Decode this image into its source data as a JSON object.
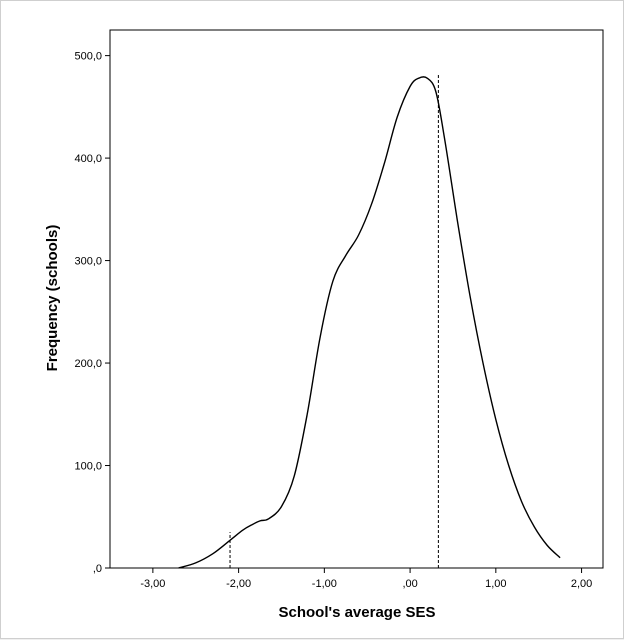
{
  "chart_data": {
    "type": "line",
    "title": "",
    "xlabel": "School's average SES",
    "ylabel": "Frequency (schools)",
    "xlim": [
      -3.5,
      2.25
    ],
    "ylim": [
      0,
      525
    ],
    "grid": false,
    "x_ticks": [
      -3.0,
      -2.0,
      -1.0,
      0.0,
      1.0,
      2.0
    ],
    "x_tick_labels": [
      "-3,00",
      "-2,00",
      "-1,00",
      ",00",
      "1,00",
      "2,00"
    ],
    "y_ticks": [
      0,
      100,
      200,
      300,
      400,
      500
    ],
    "y_tick_labels": [
      ",0",
      "100,0",
      "200,0",
      "300,0",
      "400,0",
      "500,0"
    ],
    "series": [
      {
        "color": "#000000",
        "x": [
          -2.7,
          -2.5,
          -2.3,
          -2.1,
          -1.95,
          -1.85,
          -1.75,
          -1.65,
          -1.5,
          -1.35,
          -1.2,
          -1.05,
          -0.9,
          -0.75,
          -0.6,
          -0.45,
          -0.3,
          -0.15,
          0.0,
          0.1,
          0.2,
          0.3,
          0.4,
          0.55,
          0.7,
          0.85,
          1.0,
          1.15,
          1.3,
          1.45,
          1.6,
          1.75
        ],
        "y": [
          0,
          5,
          14,
          27,
          37,
          42,
          46,
          48,
          60,
          90,
          150,
          225,
          280,
          305,
          325,
          355,
          395,
          440,
          470,
          478,
          478,
          465,
          420,
          340,
          265,
          200,
          145,
          100,
          65,
          40,
          22,
          10
        ]
      }
    ],
    "reference_lines": [
      {
        "x": -2.1,
        "ymin": 0,
        "ymax": 35,
        "style": "dashed"
      },
      {
        "x": 0.33,
        "ymin": 0,
        "ymax": 482,
        "style": "dashed"
      }
    ]
  }
}
